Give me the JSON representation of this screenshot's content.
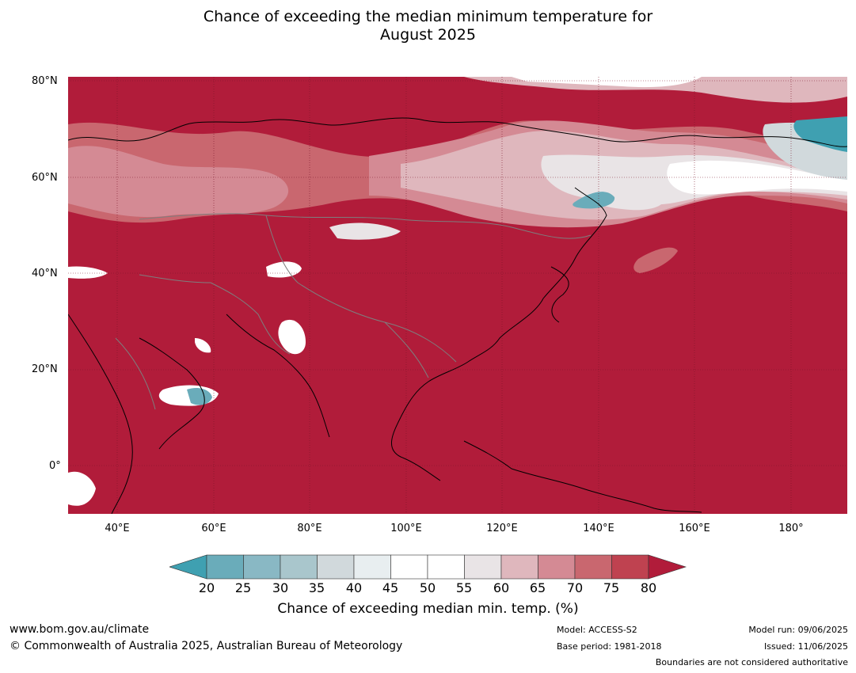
{
  "title_line1": "Chance of exceeding the median minimum temperature for",
  "title_line2": "August 2025",
  "map": {
    "base_color": "#b11c3a",
    "lat_labels": [
      "80°N",
      "60°N",
      "40°N",
      "20°N",
      "0°"
    ],
    "lon_labels": [
      "40°E",
      "60°E",
      "80°E",
      "100°E",
      "120°E",
      "140°E",
      "160°E",
      "180°"
    ]
  },
  "colorbar": {
    "ticks": [
      "20",
      "25",
      "30",
      "35",
      "40",
      "45",
      "50",
      "55",
      "60",
      "65",
      "70",
      "75",
      "80"
    ],
    "colors": [
      "#3fa0b1",
      "#6aacba",
      "#89b8c4",
      "#a9c6cc",
      "#d1d9dc",
      "#e8eef0",
      "#ffffff",
      "#ffffff",
      "#e9e4e6",
      "#dfb7bd",
      "#d48a94",
      "#c9676f",
      "#bf4250",
      "#b11c3a"
    ],
    "label": "Chance of exceeding median min. temp. (%)"
  },
  "footer": {
    "website": "www.bom.gov.au/climate",
    "copyright": "© Commonwealth of Australia 2025, Australian Bureau of Meteorology",
    "model": "Model: ACCESS-S2",
    "base_period": "Base period: 1981-2018",
    "model_run": "Model run: 09/06/2025",
    "issued": "Issued: 11/06/2025",
    "disclaimer": "Boundaries are not considered authoritative"
  }
}
